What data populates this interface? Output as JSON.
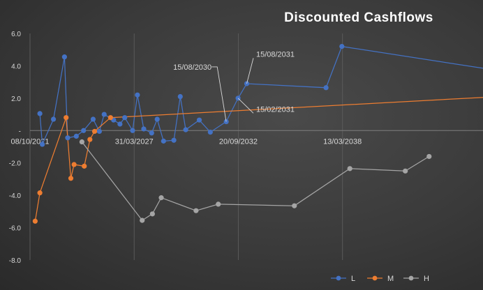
{
  "chart_data": {
    "type": "line",
    "title": "Discounted Cashflows",
    "xlabel": "",
    "ylabel": "",
    "xlim": [
      "2021-10-08",
      "2045-08-01"
    ],
    "ylim": [
      -8.0,
      6.0
    ],
    "y_ticks": [
      {
        "value": 6,
        "label": "6.0"
      },
      {
        "value": 4,
        "label": "4.0"
      },
      {
        "value": 2,
        "label": "2.0"
      },
      {
        "value": 0,
        "label": "-"
      },
      {
        "value": -2,
        "label": "-2.0"
      },
      {
        "value": -4,
        "label": "-4.0"
      },
      {
        "value": -6,
        "label": "-6.0"
      },
      {
        "value": -8,
        "label": "-8.0"
      }
    ],
    "x_ticks": [
      {
        "date": "2021-10-08",
        "label": "08/10/2021"
      },
      {
        "date": "2027-03-31",
        "label": "31/03/2027"
      },
      {
        "date": "2032-09-20",
        "label": "20/09/2032"
      },
      {
        "date": "2038-03-13",
        "label": "13/03/2038"
      }
    ],
    "grid": {
      "vertical": true,
      "horizontal": false
    },
    "legend": "bottom-right",
    "series": [
      {
        "name": "L",
        "color": "#4472c4",
        "points": [
          {
            "x": "2022-04-15",
            "y": 1.05
          },
          {
            "x": "2022-06-01",
            "y": -0.85
          },
          {
            "x": "2023-01-01",
            "y": 0.7
          },
          {
            "x": "2023-08-01",
            "y": 4.55
          },
          {
            "x": "2023-10-01",
            "y": -0.45
          },
          {
            "x": "2024-03-15",
            "y": -0.35
          },
          {
            "x": "2024-08-01",
            "y": 0.0
          },
          {
            "x": "2025-02-01",
            "y": 0.7
          },
          {
            "x": "2025-06-01",
            "y": -0.05
          },
          {
            "x": "2025-09-01",
            "y": 1.0
          },
          {
            "x": "2026-03-01",
            "y": 0.65
          },
          {
            "x": "2026-07-01",
            "y": 0.4
          },
          {
            "x": "2026-10-01",
            "y": 0.8
          },
          {
            "x": "2027-03-01",
            "y": 0.0
          },
          {
            "x": "2027-06-01",
            "y": 2.2
          },
          {
            "x": "2027-10-01",
            "y": 0.1
          },
          {
            "x": "2028-03-01",
            "y": -0.15
          },
          {
            "x": "2028-06-15",
            "y": 0.7
          },
          {
            "x": "2028-10-15",
            "y": -0.65
          },
          {
            "x": "2029-05-01",
            "y": -0.6
          },
          {
            "x": "2029-09-01",
            "y": 2.1
          },
          {
            "x": "2029-12-15",
            "y": 0.05
          },
          {
            "x": "2030-09-01",
            "y": 0.65
          },
          {
            "x": "2031-04-01",
            "y": -0.1
          },
          {
            "x": "2032-02-01",
            "y": 0.55
          },
          {
            "x": "2032-09-15",
            "y": 2.0
          },
          {
            "x": "2033-03-01",
            "y": 2.9
          },
          {
            "x": "2037-05-01",
            "y": 2.65
          },
          {
            "x": "2038-03-01",
            "y": 5.2
          },
          {
            "x": "2045-08-01",
            "y": 3.85
          }
        ]
      },
      {
        "name": "M",
        "color": "#ed7d31",
        "points": [
          {
            "x": "2022-01-15",
            "y": -5.6
          },
          {
            "x": "2022-04-15",
            "y": -3.85
          },
          {
            "x": "2023-09-01",
            "y": 0.8
          },
          {
            "x": "2023-12-01",
            "y": -2.95
          },
          {
            "x": "2024-02-01",
            "y": -2.1
          },
          {
            "x": "2024-08-15",
            "y": -2.2
          },
          {
            "x": "2024-12-01",
            "y": -0.55
          },
          {
            "x": "2025-03-01",
            "y": -0.05
          },
          {
            "x": "2026-01-01",
            "y": 0.8
          },
          {
            "x": "2045-08-01",
            "y": 2.05
          }
        ]
      },
      {
        "name": "H",
        "color": "#a5a5a5",
        "points": [
          {
            "x": "2024-07-01",
            "y": -0.7
          },
          {
            "x": "2027-09-01",
            "y": -5.55
          },
          {
            "x": "2028-03-15",
            "y": -5.15
          },
          {
            "x": "2028-09-01",
            "y": -4.15
          },
          {
            "x": "2030-07-01",
            "y": -4.95
          },
          {
            "x": "2031-09-01",
            "y": -4.55
          },
          {
            "x": "2035-09-01",
            "y": -4.65
          },
          {
            "x": "2038-08-01",
            "y": -2.35
          },
          {
            "x": "2041-07-01",
            "y": -2.5
          },
          {
            "x": "2042-10-01",
            "y": -1.6
          }
        ]
      }
    ],
    "annotations": [
      {
        "label": "15/08/2031",
        "point": {
          "x": "2033-03-01",
          "y": 2.9
        },
        "text_at": {
          "x": "2033-08-01",
          "y": 4.65
        }
      },
      {
        "label": "15/08/2030",
        "point": {
          "x": "2032-02-01",
          "y": 0.55
        },
        "text_at": {
          "x": "2029-01-15",
          "y": 3.85
        }
      },
      {
        "label": "15/02/2031",
        "point": {
          "x": "2032-09-15",
          "y": 2.0
        },
        "text_at": {
          "x": "2033-08-01",
          "y": 1.25
        }
      }
    ]
  }
}
